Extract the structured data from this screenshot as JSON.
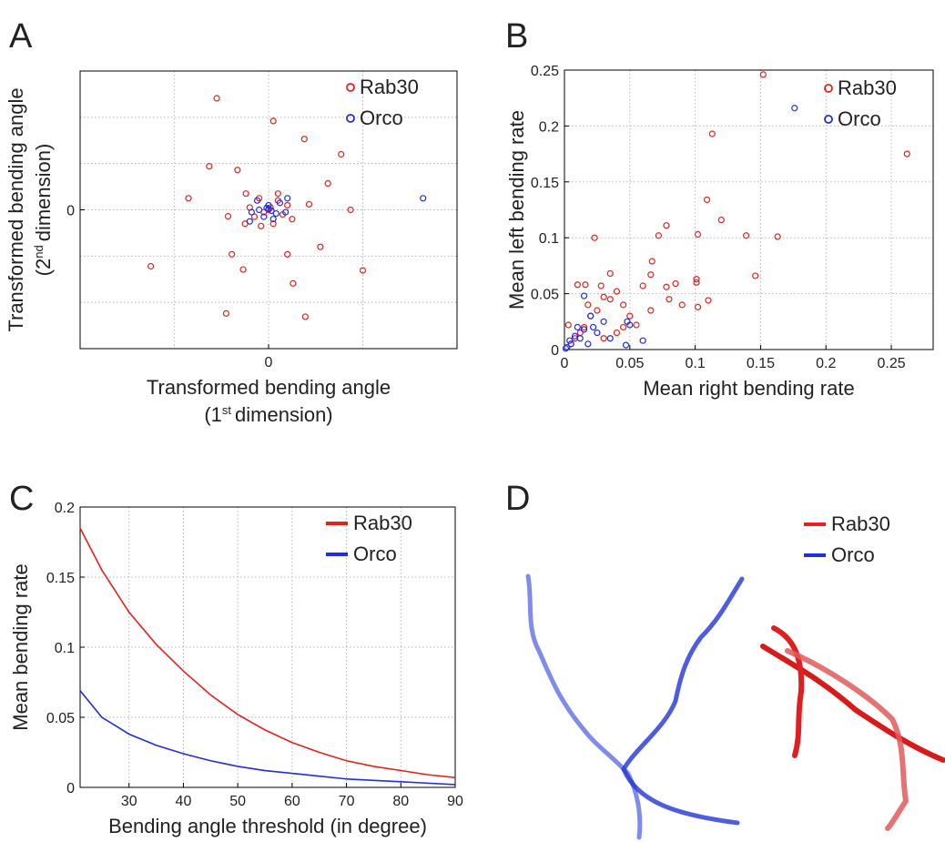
{
  "chart_data": [
    {
      "type": "scatter",
      "panel_label": "A",
      "xlabel": {
        "text": "Transformed bending angle",
        "second": [
          "(1",
          "st",
          "dimension)"
        ]
      },
      "ylabel": {
        "text": "Transformed bending angle",
        "second": [
          "(2",
          "nd",
          "dimension)"
        ]
      },
      "xlim": [
        -2,
        2
      ],
      "ylim": [
        -3,
        3
      ],
      "xticks": [
        0
      ],
      "yticks": [
        0
      ],
      "xgrid": [
        -1,
        0,
        1
      ],
      "ygrid": [
        -2,
        -1,
        0,
        1,
        2
      ],
      "legend": "upper right",
      "series": [
        {
          "name": "Rab30",
          "color": "#e8201a",
          "x": [
            -0.55,
            0.05,
            0.38,
            0.77,
            -0.63,
            -0.33,
            -0.85,
            0.63,
            0.87,
            -1.25,
            -0.27,
            1.0,
            0.55,
            0.26,
            -0.45,
            0.39,
            -0.39,
            0.2,
            -0.43,
            0.43,
            -0.24,
            0.1,
            -0.1,
            0.15,
            -0.15,
            0.05,
            0.2,
            -0.2,
            0,
            0.02,
            -0.05,
            0.25,
            -0.25,
            0.1,
            -0.08
          ],
          "values": [
            2.41,
            1.92,
            1.53,
            1.2,
            0.94,
            0.86,
            0.25,
            0.57,
            0,
            -1.22,
            -1.29,
            -1.31,
            -0.8,
            -1.59,
            -2.24,
            -2.31,
            -0.96,
            -0.96,
            -0.14,
            0.12,
            0.35,
            0.2,
            0.25,
            -0.1,
            -0.15,
            -0.3,
            0.1,
            0.05,
            0,
            0.05,
            -0.05,
            -0.2,
            -0.3,
            0.35,
            -0.35
          ]
        },
        {
          "name": "Orco",
          "color": "#1f2ee0",
          "x": [
            1.64,
            0,
            -0.1,
            0.08,
            0.12,
            -0.12,
            0.05,
            -0.05,
            0.18,
            -0.18,
            0.2,
            -0.2,
            0,
            0.03,
            -0.02
          ],
          "values": [
            0.25,
            0.1,
            0,
            -0.08,
            0.15,
            0.2,
            -0.2,
            -0.15,
            -0.05,
            -0.05,
            0.25,
            -0.25,
            0.02,
            -0.02,
            0.04
          ]
        }
      ]
    },
    {
      "type": "scatter",
      "panel_label": "B",
      "xlabel": {
        "text": "Mean right bending rate"
      },
      "ylabel": {
        "text": "Mean left bending rate"
      },
      "xlim": [
        0,
        0.282
      ],
      "ylim": [
        0,
        0.25
      ],
      "xticks": [
        0,
        0.05,
        0.1,
        0.15,
        0.2,
        0.25
      ],
      "yticks": [
        0,
        0.05,
        0.1,
        0.15,
        0.2,
        0.25
      ],
      "grid": true,
      "legend": "upper right",
      "series": [
        {
          "name": "Rab30",
          "color": "#e8201a",
          "x": [
            0.152,
            0.262,
            0.113,
            0.109,
            0.12,
            0.078,
            0.072,
            0.102,
            0.139,
            0.163,
            0.023,
            0.067,
            0.066,
            0.146,
            0.101,
            0.101,
            0.085,
            0.078,
            0.06,
            0.08,
            0.11,
            0.09,
            0.102,
            0.066,
            0.035,
            0.01,
            0.016,
            0.028,
            0.04,
            0.045,
            0.03,
            0.025,
            0.05,
            0.055,
            0.04,
            0.02,
            0.015,
            0.008,
            0.005,
            0.012,
            0.03,
            0.003,
            0.018,
            0.035,
            0.045
          ],
          "values": [
            0.246,
            0.175,
            0.193,
            0.134,
            0.116,
            0.111,
            0.102,
            0.103,
            0.102,
            0.101,
            0.1,
            0.079,
            0.067,
            0.066,
            0.063,
            0.06,
            0.059,
            0.056,
            0.057,
            0.045,
            0.044,
            0.04,
            0.038,
            0.035,
            0.068,
            0.058,
            0.058,
            0.057,
            0.052,
            0.04,
            0.047,
            0.035,
            0.03,
            0.022,
            0.015,
            0.03,
            0.02,
            0.01,
            0.005,
            0.015,
            0.01,
            0.022,
            0.04,
            0.045,
            0.02
          ]
        },
        {
          "name": "Orco",
          "color": "#1f2ee0",
          "x": [
            0.176,
            0.048,
            0.05,
            0.06,
            0.047,
            0.015,
            0.02,
            0.01,
            0.012,
            0.005,
            0.002,
            0.008,
            0.025,
            0.03,
            0.015,
            0.004,
            0.018,
            0.035,
            0.022,
            0.001
          ],
          "values": [
            0.216,
            0.025,
            0.022,
            0.008,
            0.004,
            0.048,
            0.03,
            0.02,
            0.01,
            0.005,
            0.002,
            0.012,
            0.015,
            0.025,
            0.018,
            0.008,
            0.005,
            0.01,
            0.02,
            0.001
          ]
        }
      ]
    },
    {
      "type": "line",
      "panel_label": "C",
      "xlabel": {
        "text": "Bending angle threshold (in degree)"
      },
      "ylabel": {
        "text": "Mean bending rate"
      },
      "xlim": [
        21,
        90
      ],
      "ylim": [
        0,
        0.2
      ],
      "xticks": [
        30,
        40,
        50,
        60,
        70,
        80,
        90
      ],
      "yticks": [
        0,
        0.05,
        0.1,
        0.15,
        0.2
      ],
      "grid": true,
      "legend": "upper right",
      "x": [
        21,
        25,
        30,
        35,
        40,
        45,
        50,
        55,
        60,
        65,
        70,
        75,
        80,
        85,
        90
      ],
      "series": [
        {
          "name": "Rab30",
          "color": "#e8201a",
          "values": [
            0.185,
            0.155,
            0.125,
            0.102,
            0.083,
            0.066,
            0.052,
            0.041,
            0.032,
            0.025,
            0.019,
            0.015,
            0.012,
            0.009,
            0.007
          ]
        },
        {
          "name": "Orco",
          "color": "#1f2ee0",
          "values": [
            0.069,
            0.05,
            0.038,
            0.03,
            0.024,
            0.019,
            0.015,
            0.012,
            0.01,
            0.008,
            0.006,
            0.005,
            0.004,
            0.003,
            0.002
          ]
        }
      ]
    },
    {
      "type": "trajectory",
      "panel_label": "D",
      "legend": "upper right",
      "series": [
        {
          "name": "Rab30",
          "color": "#e8201a"
        },
        {
          "name": "Orco",
          "color": "#1f2ee0"
        }
      ]
    }
  ]
}
